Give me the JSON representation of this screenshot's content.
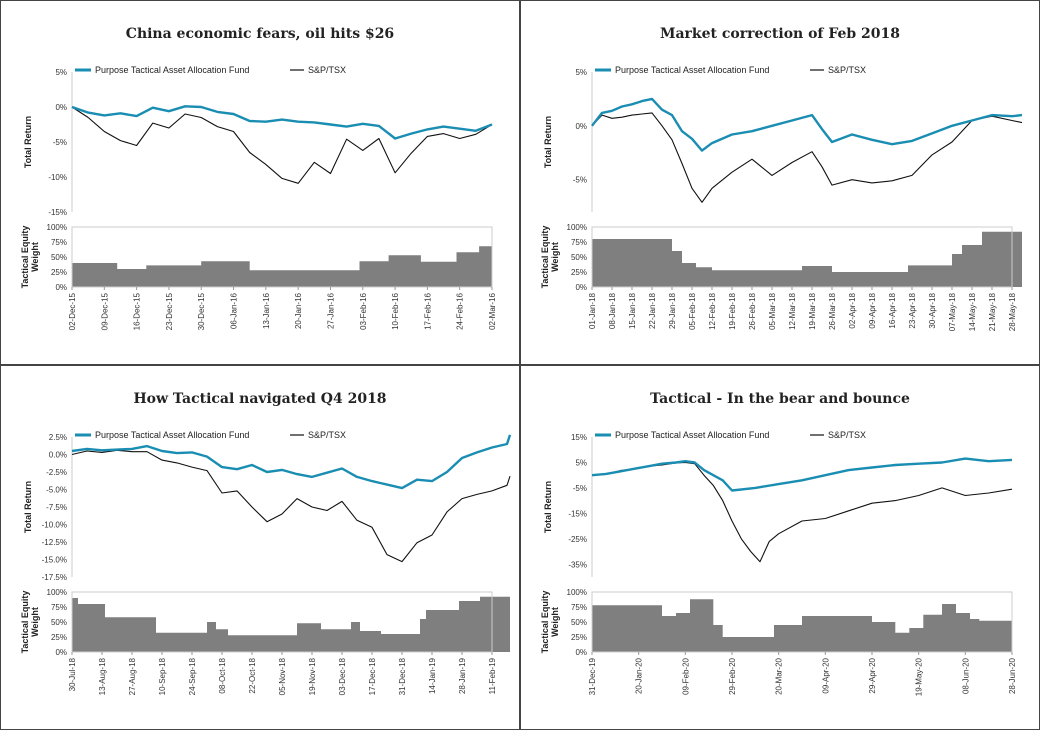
{
  "colors": {
    "fund": "#1a8db3",
    "index": "#111111",
    "area": "#7f7f7f",
    "frame": "#444444",
    "axis": "#cccccc"
  },
  "legend": {
    "fund": "Purpose Tactical Asset Allocation Fund",
    "index": "S&P/TSX"
  },
  "labels": {
    "total_return": "Total Return",
    "weight_line1": "Tactical Equity",
    "weight_line2": "Weight"
  },
  "chart_data": [
    {
      "type": "line",
      "title": "China economic fears, oil hits $26",
      "dates": [
        "02-Dec-15",
        "09-Dec-15",
        "16-Dec-15",
        "23-Dec-15",
        "30-Dec-15",
        "06-Jan-16",
        "13-Jan-16",
        "20-Jan-16",
        "27-Jan-16",
        "03-Feb-16",
        "10-Feb-16",
        "17-Feb-16",
        "24-Feb-16",
        "02-Mar-16"
      ],
      "ylim": [
        -15,
        5
      ],
      "yticks": [
        5,
        0,
        -5,
        -10,
        -15
      ],
      "ytick_labels": [
        "5%",
        "0%",
        "-5%",
        "-10%",
        "-15%"
      ],
      "series": [
        {
          "name": "Purpose Tactical Asset Allocation Fund",
          "x": [
            0,
            0.5,
            1,
            1.5,
            2,
            2.5,
            3,
            3.5,
            4,
            4.5,
            5,
            5.5,
            6,
            6.5,
            7,
            7.5,
            8,
            8.5,
            9,
            9.5,
            10,
            10.5,
            11,
            11.5,
            12,
            12.5,
            13
          ],
          "y": [
            0,
            -0.8,
            -1.2,
            -0.9,
            -1.3,
            -0.1,
            -0.6,
            0.1,
            0,
            -0.7,
            -1,
            -2,
            -2.1,
            -1.8,
            -2.1,
            -2.2,
            -2.5,
            -2.8,
            -2.4,
            -2.7,
            -4.5,
            -3.8,
            -3.2,
            -2.8,
            -3.1,
            -3.4,
            -2.5
          ]
        },
        {
          "name": "S&P/TSX",
          "x": [
            0,
            0.5,
            1,
            1.5,
            2,
            2.5,
            3,
            3.5,
            4,
            4.5,
            5,
            5.5,
            6,
            6.5,
            7,
            7.5,
            8,
            8.5,
            9,
            9.5,
            10,
            10.5,
            11,
            11.5,
            12,
            12.5,
            13
          ],
          "y": [
            0,
            -1.5,
            -3.5,
            -4.8,
            -5.5,
            -2.3,
            -3,
            -1,
            -1.5,
            -2.8,
            -3.5,
            -6.5,
            -8.2,
            -10.2,
            -10.9,
            -7.9,
            -9.5,
            -4.6,
            -6.2,
            -4.5,
            -9.4,
            -6.6,
            -4.2,
            -3.8,
            -4.5,
            -3.9,
            -2.5
          ]
        }
      ],
      "weight": {
        "ylim": [
          0,
          100
        ],
        "yticks": [
          100,
          75,
          50,
          25,
          0
        ],
        "ytick_labels": [
          "100%",
          "75%",
          "50%",
          "25%",
          "0%"
        ],
        "x": [
          0,
          1.4,
          1.4,
          2.3,
          2.3,
          4,
          4,
          5.5,
          5.5,
          8.9,
          8.9,
          9.8,
          9.8,
          10.8,
          10.8,
          11.9,
          11.9,
          12.6,
          12.6,
          13
        ],
        "y": [
          40,
          40,
          30,
          30,
          36,
          36,
          43,
          43,
          28,
          28,
          43,
          43,
          53,
          53,
          42,
          42,
          58,
          58,
          68,
          68
        ]
      }
    },
    {
      "type": "line",
      "title": "Market correction of Feb 2018",
      "dates": [
        "01-Jan-18",
        "08-Jan-18",
        "15-Jan-18",
        "22-Jan-18",
        "29-Jan-18",
        "05-Feb-18",
        "12-Feb-18",
        "19-Feb-18",
        "26-Feb-18",
        "05-Mar-18",
        "12-Mar-18",
        "19-Mar-18",
        "26-Mar-18",
        "02-Apr-18",
        "09-Apr-18",
        "16-Apr-18",
        "23-Apr-18",
        "30-Apr-18",
        "07-May-18",
        "14-May-18",
        "21-May-18",
        "28-May-18"
      ],
      "ylim": [
        -8,
        5
      ],
      "yticks": [
        5,
        0,
        -5
      ],
      "ytick_labels": [
        "5%",
        "0%",
        "-5%"
      ],
      "series": [
        {
          "name": "Purpose Tactical Asset Allocation Fund",
          "x": [
            0,
            0.5,
            1,
            1.5,
            2,
            2.5,
            3,
            3.5,
            4,
            4.5,
            5,
            5.5,
            6,
            7,
            8,
            9,
            10,
            11,
            11.5,
            12,
            13,
            14,
            15,
            16,
            17,
            18,
            19,
            20,
            21,
            21.5
          ],
          "y": [
            0,
            1.2,
            1.4,
            1.8,
            2,
            2.3,
            2.5,
            1.5,
            1,
            -0.5,
            -1.2,
            -2.3,
            -1.6,
            -0.8,
            -0.5,
            0,
            0.5,
            1,
            -0.3,
            -1.5,
            -0.8,
            -1.3,
            -1.7,
            -1.4,
            -0.7,
            0,
            0.5,
            1,
            0.9,
            1
          ]
        },
        {
          "name": "S&P/TSX",
          "x": [
            0,
            0.5,
            1,
            1.5,
            2,
            2.5,
            3,
            3.5,
            4,
            4.5,
            5,
            5.5,
            6,
            7,
            8,
            9,
            10,
            11,
            11.5,
            12,
            13,
            14,
            15,
            16,
            17,
            18,
            19,
            20,
            21,
            21.5
          ],
          "y": [
            0,
            1,
            0.7,
            0.8,
            1,
            1.1,
            1.2,
            0,
            -1.3,
            -3.5,
            -5.8,
            -7.1,
            -5.8,
            -4.3,
            -3.1,
            -4.6,
            -3.4,
            -2.4,
            -3.8,
            -5.5,
            -5,
            -5.3,
            -5.1,
            -4.6,
            -2.7,
            -1.5,
            0.5,
            0.9,
            0.5,
            0.3
          ]
        }
      ],
      "weight": {
        "ylim": [
          0,
          100
        ],
        "yticks": [
          100,
          75,
          50,
          25,
          0
        ],
        "ytick_labels": [
          "100%",
          "75%",
          "50%",
          "25%",
          "0%"
        ],
        "x": [
          0,
          4,
          4,
          4.5,
          4.5,
          5.2,
          5.2,
          6,
          6,
          10.5,
          10.5,
          12,
          12,
          15.8,
          15.8,
          18,
          18,
          18.5,
          18.5,
          19.5,
          19.5,
          21.5
        ],
        "y": [
          80,
          80,
          60,
          60,
          40,
          40,
          33,
          33,
          28,
          28,
          35,
          35,
          25,
          25,
          36,
          36,
          55,
          55,
          70,
          70,
          92,
          92
        ]
      }
    },
    {
      "type": "line",
      "title": "How Tactical navigated Q4 2018",
      "dates": [
        "30-Jul-18",
        "13-Aug-18",
        "27-Aug-18",
        "10-Sep-18",
        "24-Sep-18",
        "08-Oct-18",
        "22-Oct-18",
        "05-Nov-18",
        "19-Nov-18",
        "03-Dec-18",
        "17-Dec-18",
        "31-Dec-18",
        "14-Jan-19",
        "28-Jan-19",
        "11-Feb-19"
      ],
      "ylim": [
        -17.5,
        2.5
      ],
      "yticks": [
        2.5,
        0,
        -2.5,
        -5,
        -7.5,
        -10,
        -12.5,
        -15,
        -17.5
      ],
      "ytick_labels": [
        "2.5%",
        "0.0%",
        "-2.5%",
        "-5.0%",
        "-7.5%",
        "-10.0%",
        "-12.5%",
        "-15.0%",
        "-17.5%"
      ],
      "series": [
        {
          "name": "Purpose Tactical Asset Allocation Fund",
          "x": [
            0,
            0.5,
            1,
            1.5,
            2,
            2.5,
            3,
            3.5,
            4,
            4.5,
            5,
            5.5,
            6,
            6.5,
            7,
            7.5,
            8,
            8.5,
            9,
            9.5,
            10,
            10.5,
            11,
            11.5,
            12,
            12.5,
            13,
            13.5,
            14,
            14.5,
            14.6
          ],
          "y": [
            0.5,
            0.8,
            0.6,
            0.7,
            0.8,
            1.2,
            0.5,
            0.2,
            0.3,
            -0.3,
            -1.8,
            -2.1,
            -1.5,
            -2.5,
            -2.2,
            -2.8,
            -3.2,
            -2.6,
            -2,
            -3.2,
            -3.8,
            -4.3,
            -4.8,
            -3.6,
            -3.8,
            -2.5,
            -0.5,
            0.3,
            1,
            1.5,
            2.8
          ]
        },
        {
          "name": "S&P/TSX",
          "x": [
            0,
            0.5,
            1,
            1.5,
            2,
            2.5,
            3,
            3.5,
            4,
            4.5,
            5,
            5.5,
            6,
            6.5,
            7,
            7.5,
            8,
            8.5,
            9,
            9.5,
            10,
            10.5,
            11,
            11.5,
            12,
            12.5,
            13,
            13.5,
            14,
            14.5,
            14.6
          ],
          "y": [
            0,
            0.5,
            0.3,
            0.6,
            0.4,
            0.4,
            -0.8,
            -1.2,
            -1.8,
            -2.3,
            -5.5,
            -5.2,
            -7.5,
            -9.6,
            -8.5,
            -6.3,
            -7.5,
            -8,
            -6.7,
            -9.4,
            -10.4,
            -14.3,
            -15.3,
            -12.6,
            -11.5,
            -8.2,
            -6.3,
            -5.7,
            -5.2,
            -4.4,
            -3.1
          ]
        }
      ],
      "weight": {
        "ylim": [
          0,
          100
        ],
        "yticks": [
          100,
          75,
          50,
          25,
          0
        ],
        "ytick_labels": [
          "100%",
          "75%",
          "50%",
          "25%",
          "0%"
        ],
        "x": [
          0,
          0.2,
          0.2,
          1.1,
          1.1,
          2.8,
          2.8,
          4.5,
          4.5,
          4.8,
          4.8,
          5.2,
          5.2,
          7.5,
          7.5,
          8.3,
          8.3,
          9.3,
          9.3,
          9.6,
          9.6,
          10.3,
          10.3,
          11.6,
          11.6,
          11.8,
          11.8,
          12.3,
          12.3,
          12.9,
          12.9,
          13.6,
          13.6,
          14.6
        ],
        "y": [
          90,
          90,
          80,
          80,
          58,
          58,
          32,
          32,
          50,
          50,
          38,
          38,
          28,
          28,
          48,
          48,
          38,
          38,
          50,
          50,
          35,
          35,
          30,
          30,
          55,
          55,
          70,
          70,
          70,
          70,
          85,
          85,
          92,
          92
        ]
      }
    },
    {
      "type": "line",
      "title": "Tactical - In the bear and bounce",
      "dates": [
        "31-Dec-19",
        "20-Jan-20",
        "09-Feb-20",
        "29-Feb-20",
        "20-Mar-20",
        "09-Apr-20",
        "29-Apr-20",
        "19-May-20",
        "08-Jun-20",
        "28-Jun-20"
      ],
      "ylim": [
        -40,
        15
      ],
      "yticks": [
        15,
        5,
        -5,
        -15,
        -25,
        -35
      ],
      "ytick_labels": [
        "15%",
        "5%",
        "-5%",
        "-15%",
        "-25%",
        "-35%"
      ],
      "series": [
        {
          "name": "Purpose Tactical Asset Allocation Fund",
          "x": [
            0,
            0.3,
            0.6,
            0.9,
            1.2,
            1.5,
            1.8,
            2,
            2.2,
            2.4,
            2.6,
            2.8,
            3,
            3.5,
            4,
            4.5,
            5,
            5.5,
            6,
            6.5,
            7,
            7.5,
            8,
            8.5,
            9
          ],
          "y": [
            0,
            0.5,
            1.5,
            2.5,
            3.5,
            4.5,
            5,
            5.5,
            5,
            2,
            0,
            -2,
            -6,
            -5,
            -3.5,
            -2,
            0,
            2,
            3,
            4,
            4.5,
            5,
            6.5,
            5.5,
            6
          ]
        },
        {
          "name": "S&P/TSX",
          "x": [
            0,
            0.3,
            0.6,
            0.9,
            1.2,
            1.5,
            1.8,
            2,
            2.2,
            2.4,
            2.6,
            2.8,
            3,
            3.2,
            3.4,
            3.6,
            3.8,
            4,
            4.5,
            5,
            5.5,
            6,
            6.5,
            7,
            7.5,
            8,
            8.5,
            9
          ],
          "y": [
            0,
            0.3,
            1.8,
            2.5,
            3.5,
            4,
            4.8,
            5,
            4.5,
            0,
            -4,
            -10,
            -18,
            -25,
            -30,
            -34,
            -26,
            -23,
            -18,
            -17,
            -14,
            -11,
            -10,
            -8,
            -5,
            -8,
            -7,
            -5.5
          ]
        }
      ],
      "weight": {
        "ylim": [
          0,
          100
        ],
        "yticks": [
          100,
          75,
          50,
          25,
          0
        ],
        "ytick_labels": [
          "100%",
          "75%",
          "50%",
          "25%",
          "0%"
        ],
        "x": [
          0,
          1.5,
          1.5,
          1.8,
          1.8,
          2.1,
          2.1,
          2.6,
          2.6,
          2.8,
          2.8,
          3.9,
          3.9,
          4.5,
          4.5,
          6,
          6,
          6.5,
          6.5,
          6.8,
          6.8,
          7.1,
          7.1,
          7.5,
          7.5,
          7.8,
          7.8,
          8.1,
          8.1,
          8.3,
          8.3,
          9
        ],
        "y": [
          78,
          78,
          60,
          60,
          65,
          65,
          88,
          88,
          45,
          45,
          25,
          25,
          45,
          45,
          60,
          60,
          50,
          50,
          32,
          32,
          40,
          40,
          62,
          62,
          80,
          80,
          65,
          65,
          55,
          55,
          52,
          52
        ]
      }
    }
  ]
}
